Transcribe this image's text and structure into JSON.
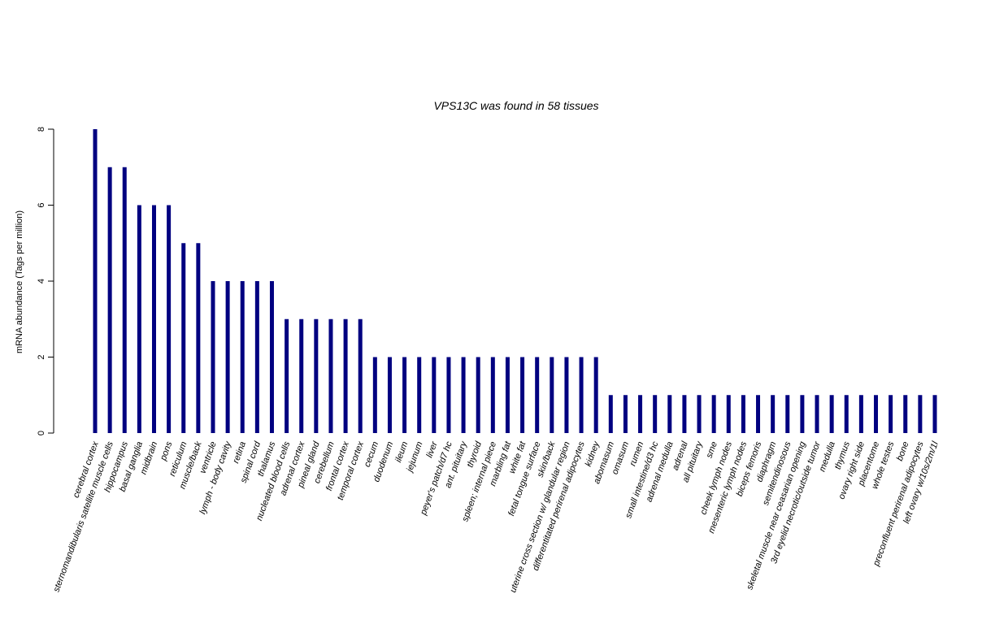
{
  "chart_data": {
    "type": "bar",
    "title": "VPS13C  was found in  58  tissues",
    "xlabel": "",
    "ylabel": "mRNA abundance (Tags per million)",
    "ylim": [
      0,
      8
    ],
    "yticks": [
      0,
      2,
      4,
      6,
      8
    ],
    "grid": false,
    "categories": [
      "cerebral cortex",
      "sternomandibularis satellite muscle cells",
      "hippocampus",
      "basal ganglia",
      "midbrain",
      "pons",
      "reticulum",
      "muscle/back",
      "ventricle",
      "lymph - body cavity",
      "retina",
      "spinal cord",
      "thalamus",
      "nucleated blood cells",
      "adrenal cortex",
      "pineal gland",
      "cerebellum",
      "frontal cortex",
      "temporal cortex",
      "cecum",
      "duodenum",
      "ileum",
      "jejunum",
      "liver",
      "peyer's patch/d7 hc",
      "ant. pituitary",
      "thyroid",
      "spleen; internal piece",
      "marbling fat",
      "white fat",
      "fetal tongue surface",
      "skin/back",
      "uterine cross section w/ glandular region",
      "differentitated perirenal adipocytes",
      "kidney",
      "abomasum",
      "omasum",
      "rumen",
      "small intestine/d3 hc",
      "adrenal medulla",
      "adrenal",
      "all pituitary",
      "sme",
      "cheek lymph nodes",
      "mesenteric lymph nodes",
      "biceps femoris",
      "diaphragm",
      "semitendinosous",
      "skeletal muscle near ceasarian opening",
      "3rd eyelid necrotic/outside tumor",
      "medulla",
      "thymus",
      "ovary right side",
      "placentome",
      "whole testes",
      "bone",
      "preconfluent perirenal adipocytes",
      "left ovary w/10s/2m/1l"
    ],
    "values": [
      8,
      7,
      7,
      6,
      6,
      6,
      5,
      5,
      4,
      4,
      4,
      4,
      4,
      3,
      3,
      3,
      3,
      3,
      3,
      2,
      2,
      2,
      2,
      2,
      2,
      2,
      2,
      2,
      2,
      2,
      2,
      2,
      2,
      2,
      2,
      1,
      1,
      1,
      1,
      1,
      1,
      1,
      1,
      1,
      1,
      1,
      1,
      1,
      1,
      1,
      1,
      1,
      1,
      1,
      1,
      1,
      1,
      1
    ],
    "colors": {
      "bar": "#000080",
      "axis": "#000000"
    }
  }
}
